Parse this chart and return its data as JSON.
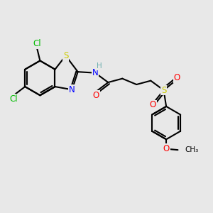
{
  "background_color": "#e8e8e8",
  "bond_color": "#000000",
  "bond_width": 1.5,
  "atom_colors": {
    "H": "#70b0b0",
    "N": "#0000ff",
    "O": "#ff0000",
    "S": "#cccc00",
    "Cl": "#00bb00"
  },
  "font_size": 8.5,
  "fig_width": 3.0,
  "fig_height": 3.0,
  "dpi": 100
}
